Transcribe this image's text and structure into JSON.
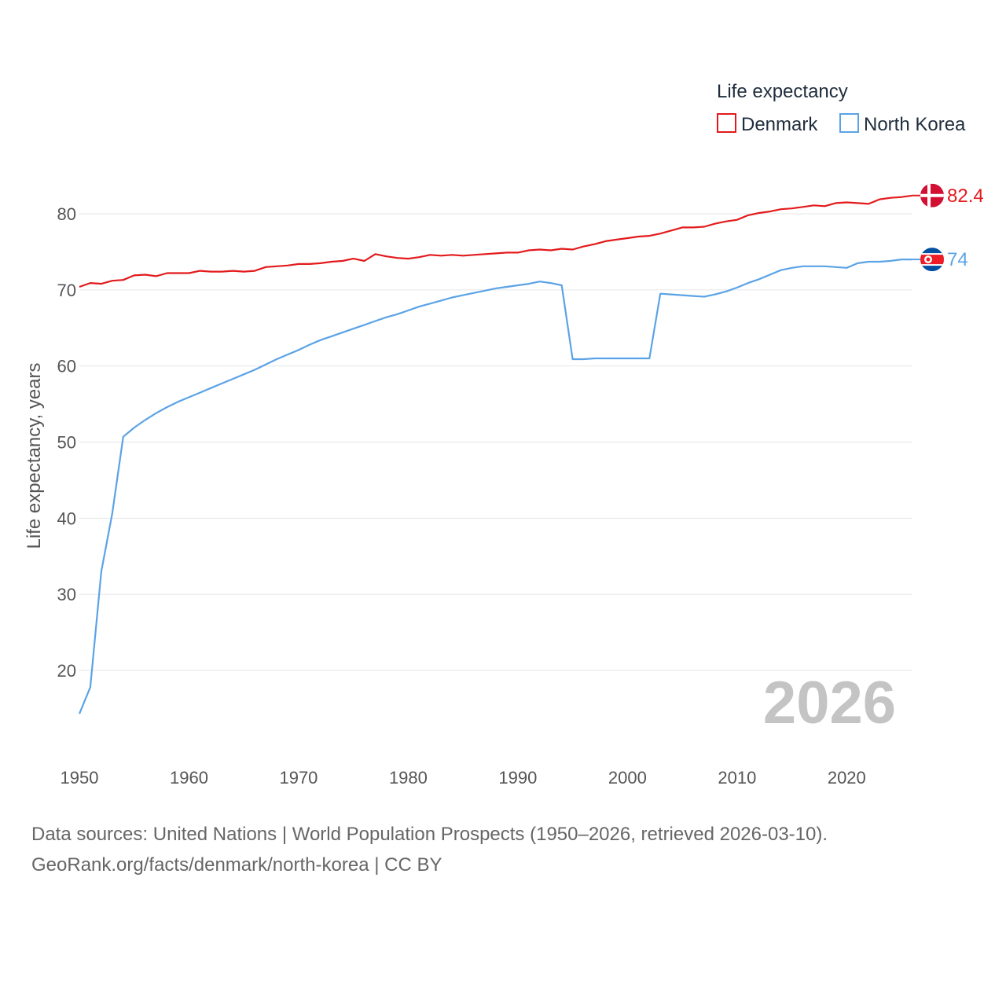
{
  "chart_data": {
    "type": "line",
    "legend_title": "Life expectancy",
    "ylabel": "Life expectancy, years",
    "year_watermark": "2026",
    "xlim": [
      1950,
      2026
    ],
    "ylim": [
      12,
      90
    ],
    "x_ticks": [
      1950,
      1960,
      1970,
      1980,
      1990,
      2000,
      2010,
      2020
    ],
    "y_ticks": [
      20,
      30,
      40,
      50,
      60,
      70,
      80
    ],
    "legend_position": "top-right",
    "x": [
      1950,
      1951,
      1952,
      1953,
      1954,
      1955,
      1956,
      1957,
      1958,
      1959,
      1960,
      1961,
      1962,
      1963,
      1964,
      1965,
      1966,
      1967,
      1968,
      1969,
      1970,
      1971,
      1972,
      1973,
      1974,
      1975,
      1976,
      1977,
      1978,
      1979,
      1980,
      1981,
      1982,
      1983,
      1984,
      1985,
      1986,
      1987,
      1988,
      1989,
      1990,
      1991,
      1992,
      1993,
      1994,
      1995,
      1996,
      1997,
      1998,
      1999,
      2000,
      2001,
      2002,
      2003,
      2004,
      2005,
      2006,
      2007,
      2008,
      2009,
      2010,
      2011,
      2012,
      2013,
      2014,
      2015,
      2016,
      2017,
      2018,
      2019,
      2020,
      2021,
      2022,
      2023,
      2024,
      2025,
      2026
    ],
    "series": [
      {
        "name": "Denmark",
        "color": "#e31a1c",
        "end_label": "82.4",
        "flag": "denmark-flag-icon",
        "values": [
          70.4,
          70.9,
          70.8,
          71.2,
          71.3,
          71.9,
          72.0,
          71.8,
          72.2,
          72.2,
          72.2,
          72.5,
          72.4,
          72.4,
          72.5,
          72.4,
          72.5,
          73.0,
          73.1,
          73.2,
          73.4,
          73.4,
          73.5,
          73.7,
          73.8,
          74.1,
          73.8,
          74.7,
          74.4,
          74.2,
          74.1,
          74.3,
          74.6,
          74.5,
          74.6,
          74.5,
          74.6,
          74.7,
          74.8,
          74.9,
          74.9,
          75.2,
          75.3,
          75.2,
          75.4,
          75.3,
          75.7,
          76.0,
          76.4,
          76.6,
          76.8,
          77.0,
          77.1,
          77.4,
          77.8,
          78.2,
          78.2,
          78.3,
          78.7,
          79.0,
          79.2,
          79.8,
          80.1,
          80.3,
          80.6,
          80.7,
          80.9,
          81.1,
          81.0,
          81.4,
          81.5,
          81.4,
          81.3,
          81.9,
          82.1,
          82.2,
          82.4
        ]
      },
      {
        "name": "North Korea",
        "color": "#5ba3e6",
        "end_label": "74",
        "flag": "north-korea-flag-icon",
        "values": [
          14.3,
          17.8,
          33.0,
          40.6,
          50.7,
          51.9,
          52.9,
          53.8,
          54.6,
          55.3,
          55.9,
          56.5,
          57.1,
          57.7,
          58.3,
          58.9,
          59.5,
          60.2,
          60.9,
          61.5,
          62.1,
          62.8,
          63.4,
          63.9,
          64.4,
          64.9,
          65.4,
          65.9,
          66.4,
          66.8,
          67.3,
          67.8,
          68.2,
          68.6,
          69.0,
          69.3,
          69.6,
          69.9,
          70.2,
          70.4,
          70.6,
          70.8,
          71.1,
          70.9,
          70.6,
          60.9,
          60.9,
          61.0,
          61.0,
          61.0,
          61.0,
          61.0,
          61.0,
          69.5,
          69.4,
          69.3,
          69.2,
          69.1,
          69.4,
          69.8,
          70.3,
          70.9,
          71.4,
          72.0,
          72.6,
          72.9,
          73.1,
          73.1,
          73.1,
          73.0,
          72.9,
          73.5,
          73.7,
          73.7,
          73.8,
          74.0,
          74.0
        ]
      }
    ]
  },
  "footer": {
    "source_line": "Data sources: United Nations | World Population Prospects (1950–2026, retrieved 2026-03-10).",
    "credit_line": "GeoRank.org/facts/denmark/north-korea | CC BY"
  }
}
